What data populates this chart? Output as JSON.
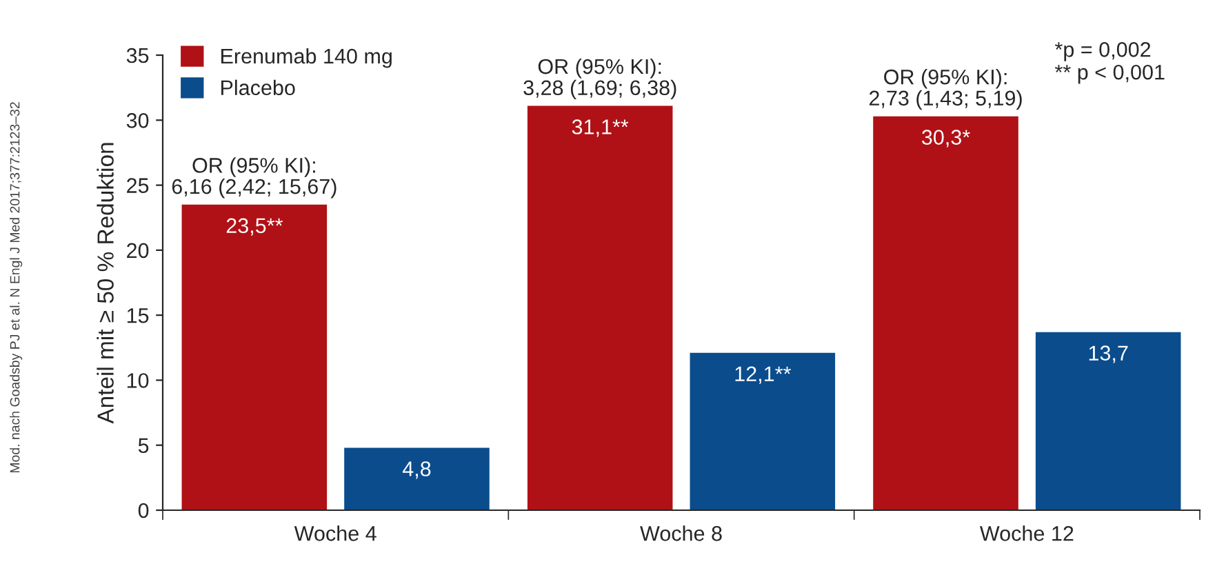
{
  "chart_data": {
    "type": "bar",
    "ylabel": "Anteil mit ≥ 50 % Reduktion",
    "categories": [
      "Woche 4",
      "Woche 8",
      "Woche 12"
    ],
    "series": [
      {
        "name": "Erenumab 140 mg",
        "color": "#b01116",
        "values": [
          23.5,
          31.1,
          30.3
        ],
        "value_labels": [
          "23,5**",
          "31,1**",
          "30,3*"
        ]
      },
      {
        "name": "Placebo",
        "color": "#0b4c8c",
        "values": [
          4.8,
          12.1,
          13.7
        ],
        "value_labels": [
          "4,8",
          "12,1**",
          "13,7"
        ]
      }
    ],
    "ylim": [
      0,
      35
    ],
    "yticks": [
      0,
      5,
      10,
      15,
      20,
      25,
      30,
      35
    ],
    "legend": "top left",
    "grid": false,
    "annotations": [
      "OR (95% KI):\n6,16 (2,42; 15,67)",
      "OR (95% KI):\n3,28 (1,69; 6,38)",
      "OR (95% KI):\n2,73 (1,43; 5,19)",
      "*p = 0,002\n** p < 0,001",
      "Mod. nach Goadsby PJ et al. N Engl J Med 2017;377:2123–32"
    ]
  }
}
